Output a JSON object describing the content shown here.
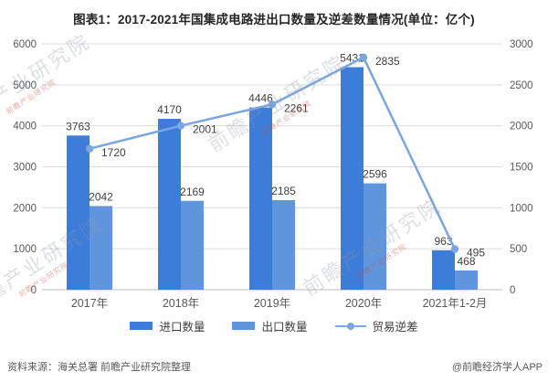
{
  "header": {
    "title": "图表1：2017-2021年国集成电路进出口数量及逆差数量情况(单位：亿个)"
  },
  "watermark": {
    "text": "前瞻产业研究院",
    "subtext": "前瞻产业研究院"
  },
  "footer": {
    "source": "资料来源：海关总署 前瞻产业研究院整理",
    "brand": "@前瞻经济学人APP"
  },
  "colors": {
    "import_bar": "#3d7cd8",
    "export_bar": "#5f95dd",
    "deficit_line": "#7aa6e2",
    "grid_line": "#dcdcdc",
    "axis_line": "#bfbfbf",
    "axis_text": "#595959",
    "data_label_text": "#404040"
  },
  "chart_data": {
    "type": "bar",
    "title": "图表1：2017-2021年国集成电路进出口数量及逆差数量情况(单位：亿个)",
    "categories": [
      "2017年",
      "2018年",
      "2019年",
      "2020年",
      "2021年1-2月"
    ],
    "series": [
      {
        "name": "进口数量",
        "type": "bar",
        "axis": "left",
        "color": "#3d7cd8",
        "values": [
          3763,
          4170,
          4446,
          5431,
          963
        ]
      },
      {
        "name": "出口数量",
        "type": "bar",
        "axis": "left",
        "color": "#5f95dd",
        "values": [
          2042,
          2169,
          2185,
          2596,
          468
        ]
      },
      {
        "name": "贸易逆差",
        "type": "line",
        "axis": "right",
        "color": "#7aa6e2",
        "values": [
          1720,
          2001,
          2261,
          2835,
          495
        ]
      }
    ],
    "left_axis": {
      "min": 0,
      "max": 6000,
      "step": 1000
    },
    "right_axis": {
      "min": 0,
      "max": 3000,
      "step": 500
    },
    "grid": true,
    "legend_position": "bottom",
    "xlabel": "",
    "ylabel": ""
  }
}
